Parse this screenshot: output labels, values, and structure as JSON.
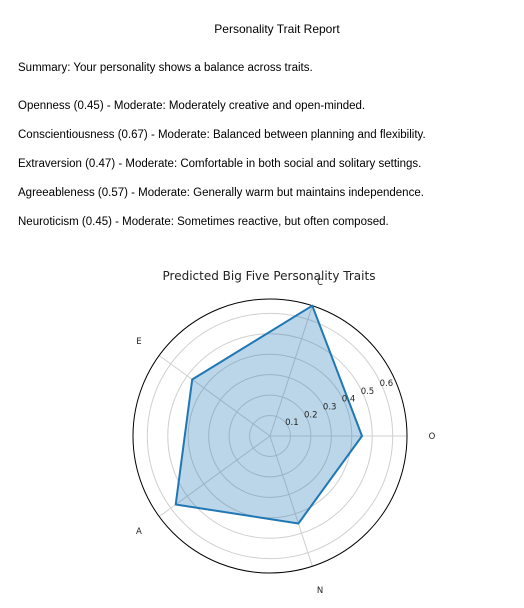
{
  "report": {
    "title": "Personality Trait Report",
    "summary": "Summary: Your personality shows a balance across traits.",
    "traits": [
      {
        "text": "Openness (0.45) - Moderate: Moderately creative and open-minded."
      },
      {
        "text": "Conscientiousness (0.67) - Moderate: Balanced between planning and flexibility."
      },
      {
        "text": "Extraversion (0.47) - Moderate: Comfortable in both social and solitary settings."
      },
      {
        "text": "Agreeableness (0.57) - Moderate: Generally warm but maintains independence."
      },
      {
        "text": "Neuroticism (0.45) - Moderate: Sometimes reactive, but often composed."
      }
    ]
  },
  "chart_data": {
    "type": "radar",
    "title": "Predicted Big Five Personality Traits",
    "categories": [
      "O",
      "C",
      "E",
      "A",
      "N"
    ],
    "values": [
      0.45,
      0.67,
      0.47,
      0.57,
      0.45
    ],
    "rticks": [
      "0.1",
      "0.2",
      "0.3",
      "0.4",
      "0.5",
      "0.6"
    ],
    "rmax": 0.67,
    "grid": true,
    "colors": {
      "line": "#1f77b4",
      "fill": "#1f77b4"
    }
  }
}
